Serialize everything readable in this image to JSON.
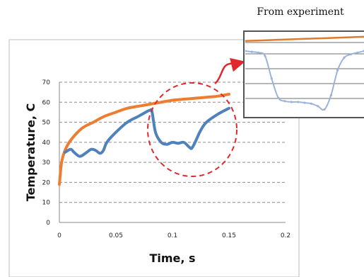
{
  "inset_title": "From experiment",
  "colors": {
    "temperature_model": "#ED7D31",
    "sample_model": "#4F81BD",
    "inset_orange": "#E07B2E",
    "inset_blue": "#9DB3DC",
    "highlight": "#E0282E"
  },
  "chart_data": {
    "type": "line",
    "xlabel": "Time, s",
    "ylabel": "Temperature, C",
    "xlim": [
      0,
      0.2
    ],
    "ylim": [
      0,
      70
    ],
    "xticks": [
      "0",
      "0.05",
      "0.1",
      "0.15",
      "0.2"
    ],
    "yticks": [
      "0",
      "10",
      "20",
      "30",
      "40",
      "50",
      "60",
      "70"
    ],
    "grid": "horizontal dashed",
    "legend": "none",
    "series": [
      {
        "x": [
          0,
          0.002,
          0.005,
          0.01,
          0.02,
          0.03,
          0.04,
          0.05,
          0.06,
          0.07,
          0.08,
          0.09,
          0.1,
          0.11,
          0.12,
          0.13,
          0.14,
          0.15
        ],
        "y": [
          19,
          30,
          36,
          41,
          47,
          50,
          53,
          55,
          57,
          58,
          59,
          60,
          61,
          61.5,
          62,
          62.5,
          63,
          64
        ],
        "color": "orange"
      },
      {
        "x": [
          0.005,
          0.01,
          0.013,
          0.018,
          0.023,
          0.028,
          0.032,
          0.036,
          0.039,
          0.042,
          0.05,
          0.06,
          0.07,
          0.08,
          0.082,
          0.085,
          0.09,
          0.095,
          0.1,
          0.105,
          0.11,
          0.115,
          0.117,
          0.12,
          0.125,
          0.13,
          0.14,
          0.15
        ],
        "y": [
          35,
          36.5,
          35,
          33,
          34.5,
          36.5,
          36,
          34.5,
          36,
          40,
          45,
          50,
          53,
          56,
          55,
          45,
          40,
          39,
          40,
          39.5,
          40,
          37.5,
          37,
          40,
          46,
          50,
          54,
          57
        ],
        "color": "blue"
      }
    ],
    "inset": {
      "title": "From experiment",
      "series": [
        {
          "color": "orange",
          "y": [
            0.9,
            0.905,
            0.91,
            0.915,
            0.92,
            0.925,
            0.93,
            0.935,
            0.94,
            0.945,
            0.95
          ]
        },
        {
          "color": "blue",
          "y": [
            0.78,
            0.77,
            0.76,
            0.72,
            0.45,
            0.22,
            0.18,
            0.17,
            0.17,
            0.16,
            0.15,
            0.12,
            0.08,
            0.25,
            0.55,
            0.7,
            0.74,
            0.76,
            0.78
          ]
        }
      ]
    }
  }
}
